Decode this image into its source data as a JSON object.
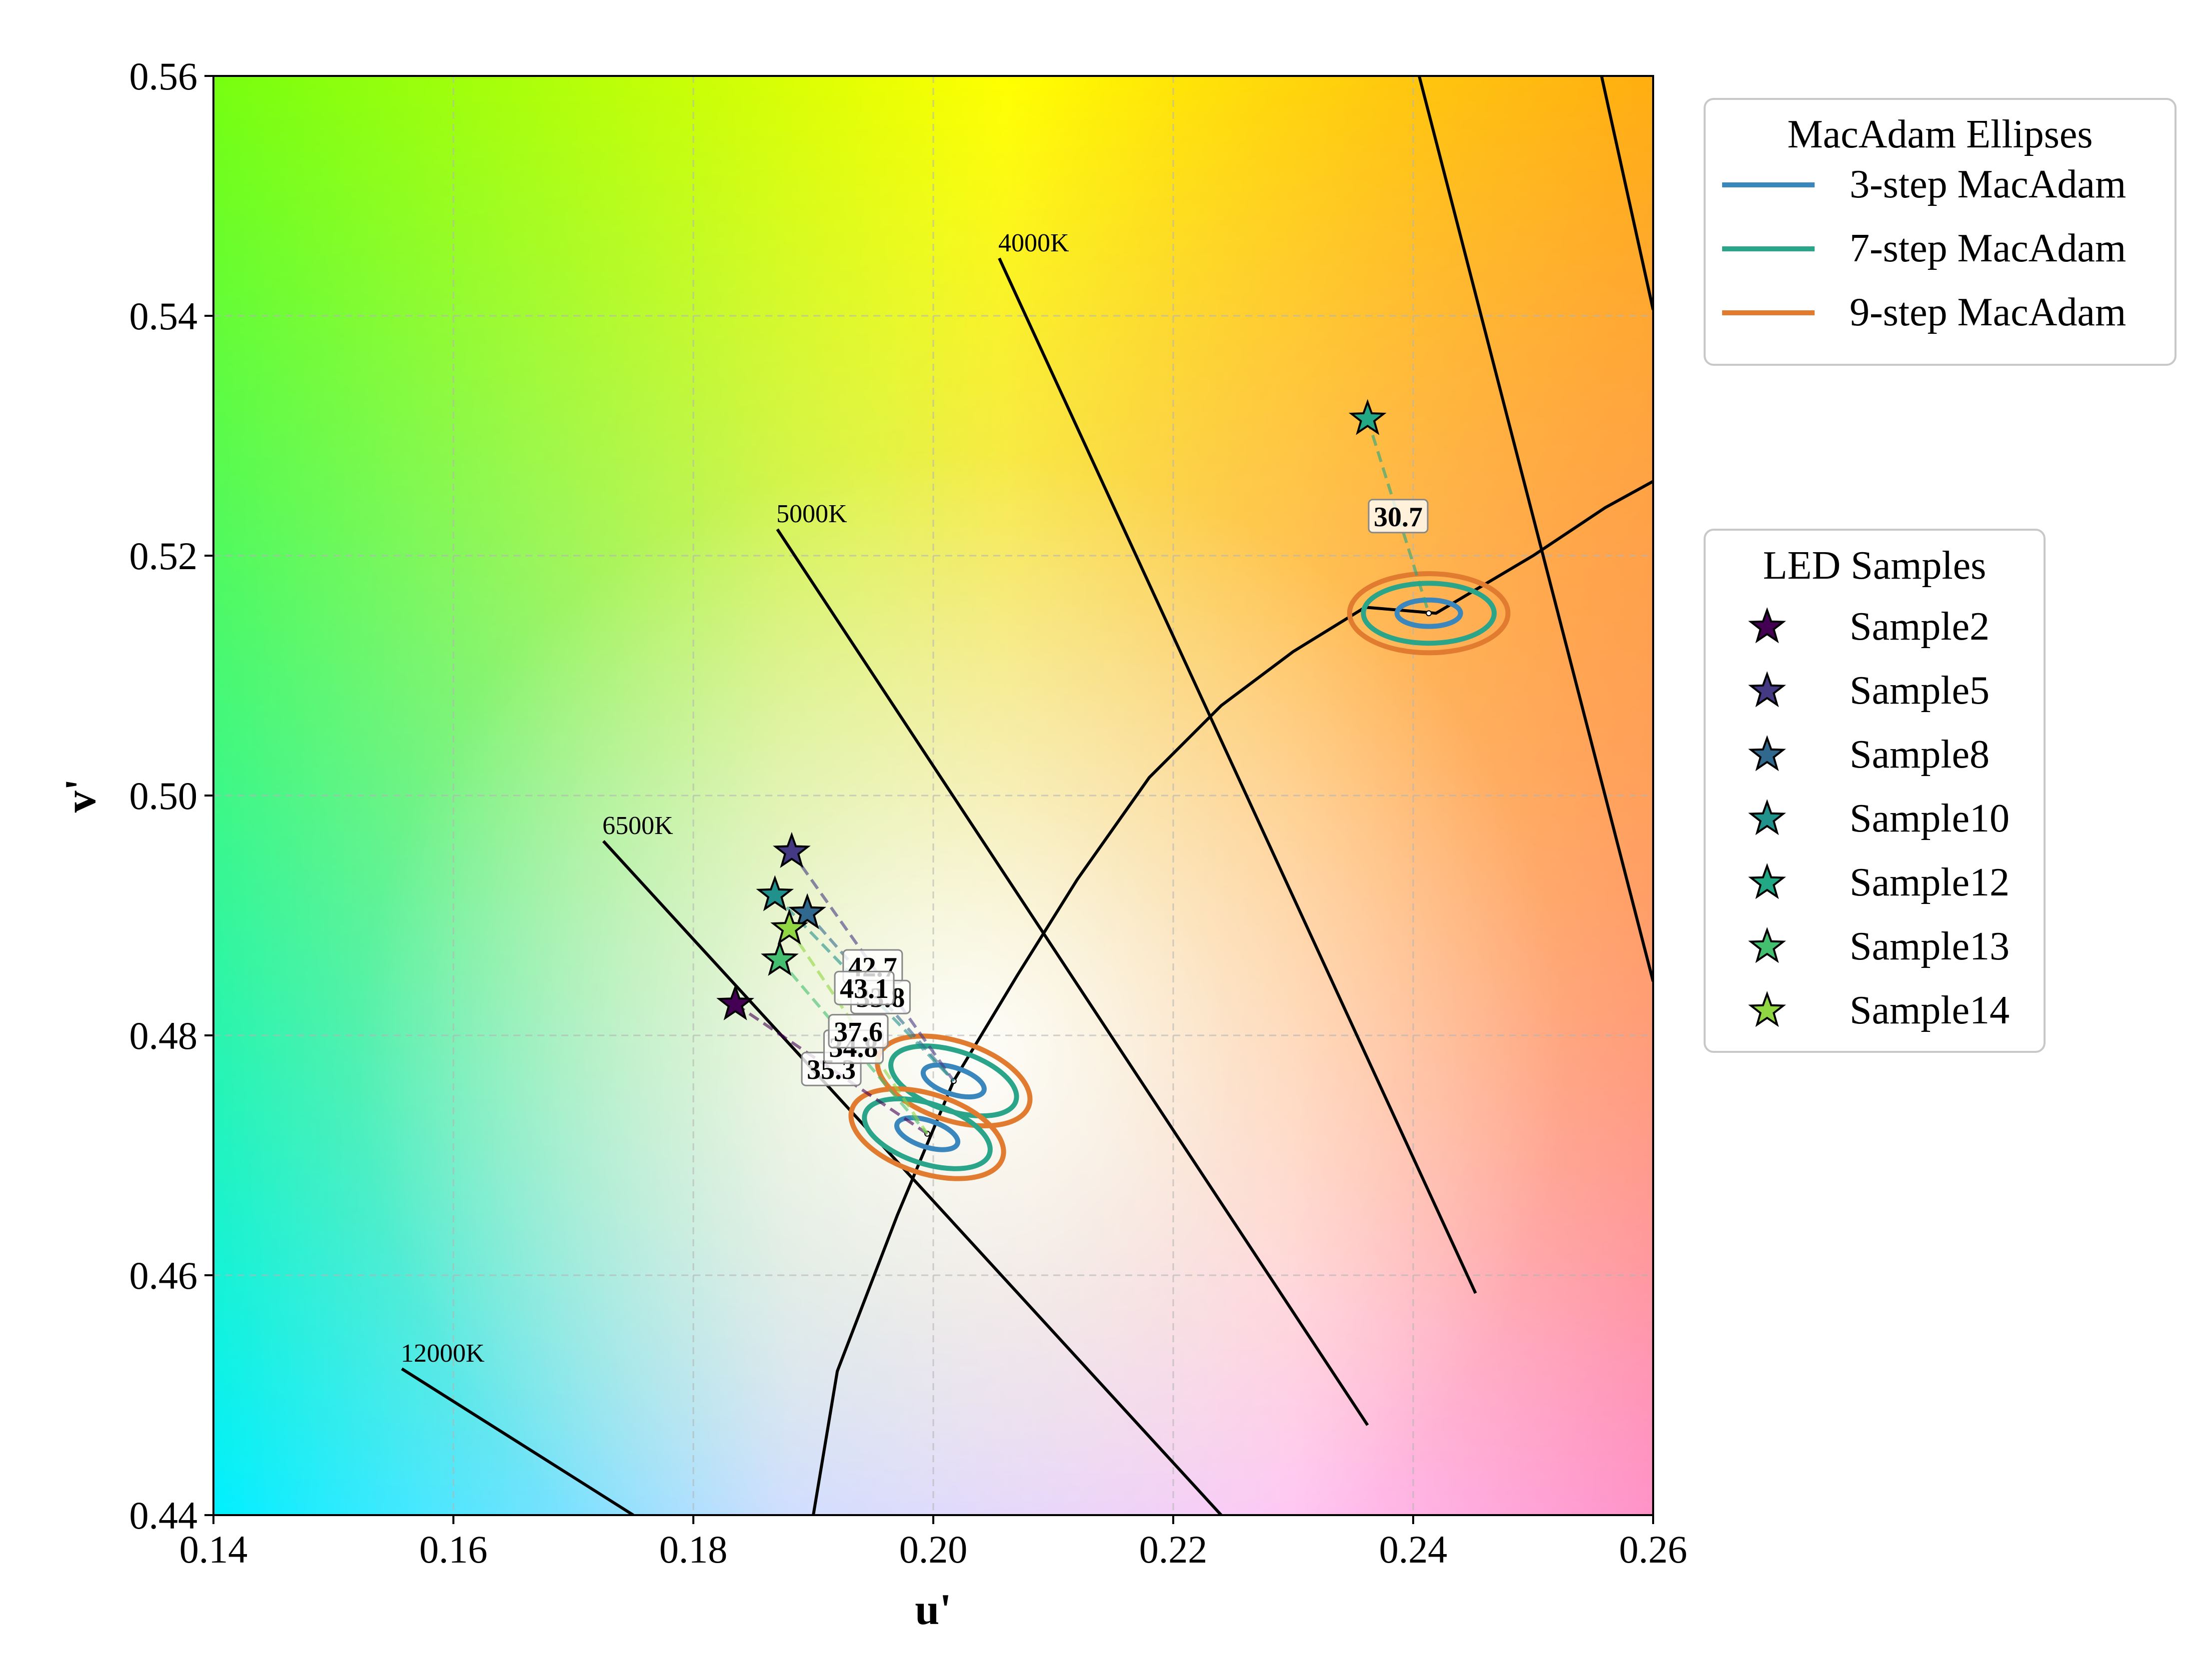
{
  "chart_data": {
    "type": "scatter",
    "xlabel": "u'",
    "ylabel": "v'",
    "xlim": [
      0.14,
      0.26
    ],
    "ylim": [
      0.44,
      0.56
    ],
    "x_ticks": [
      "0.14",
      "0.16",
      "0.18",
      "0.20",
      "0.22",
      "0.24",
      "0.26"
    ],
    "y_ticks": [
      "0.44",
      "0.46",
      "0.48",
      "0.50",
      "0.52",
      "0.54",
      "0.56"
    ],
    "grid": true,
    "background": "CIE 1976 u'v' chromaticity color map",
    "planckian_locus": [
      [
        0.19,
        0.44
      ],
      [
        0.192,
        0.452
      ],
      [
        0.197,
        0.465
      ],
      [
        0.2017,
        0.4762
      ],
      [
        0.207,
        0.485
      ],
      [
        0.212,
        0.493
      ],
      [
        0.218,
        0.5015
      ],
      [
        0.224,
        0.5075
      ],
      [
        0.23,
        0.512
      ],
      [
        0.236,
        0.5157
      ],
      [
        0.2419,
        0.5152
      ],
      [
        0.25,
        0.52
      ],
      [
        0.256,
        0.524
      ],
      [
        0.26,
        0.5262
      ]
    ],
    "isotemperature_lines": [
      {
        "label": "12000K",
        "start": [
          0.1557,
          0.4522
        ],
        "end": [
          0.175,
          0.44
        ]
      },
      {
        "label": "6500K",
        "start": [
          0.1725,
          0.4962
        ],
        "end": [
          0.224,
          0.44
        ]
      },
      {
        "label": "5000K",
        "start": [
          0.187,
          0.5222
        ],
        "end": [
          0.2362,
          0.4475
        ]
      },
      {
        "label": "4000K",
        "start": [
          0.2055,
          0.5448
        ],
        "end": [
          0.2452,
          0.4585
        ]
      },
      {
        "label": "",
        "start": [
          0.2405,
          0.56
        ],
        "end": [
          0.26,
          0.4845
        ]
      },
      {
        "label": "",
        "start": [
          0.2557,
          0.56
        ],
        "end": [
          0.26,
          0.5405
        ]
      }
    ],
    "ellipse_centers": [
      {
        "u": 0.2017,
        "v": 0.4762,
        "angle_deg": 18
      },
      {
        "u": 0.1995,
        "v": 0.4718,
        "angle_deg": 18
      },
      {
        "u": 0.2413,
        "v": 0.5152,
        "angle_deg": 0
      }
    ],
    "ellipse_legend": {
      "title": "MacAdam Ellipses",
      "items": [
        {
          "label": "3-step MacAdam",
          "color": "#3a87bd",
          "axes": [
            0.00265,
            0.0011
          ]
        },
        {
          "label": "7-step MacAdam",
          "color": "#2aa58a",
          "axes": [
            0.00545,
            0.0025
          ]
        },
        {
          "label": "9-step MacAdam",
          "color": "#e07b30",
          "axes": [
            0.0066,
            0.0033
          ]
        }
      ]
    },
    "samples_legend": {
      "title": "LED Samples",
      "items": [
        {
          "label": "Sample2",
          "color": "#440154",
          "u": 0.1835,
          "v": 0.4826,
          "target": 1,
          "deviation": "35.3"
        },
        {
          "label": "Sample5",
          "color": "#443a83",
          "u": 0.1882,
          "v": 0.4953,
          "target": 0,
          "deviation": "42.7"
        },
        {
          "label": "Sample8",
          "color": "#31688e",
          "u": 0.1895,
          "v": 0.4902,
          "target": 0,
          "deviation": "33.8"
        },
        {
          "label": "Sample10",
          "color": "#21918c",
          "u": 0.1868,
          "v": 0.4917,
          "target": 0,
          "deviation": "43.1"
        },
        {
          "label": "Sample12",
          "color": "#22a884",
          "u": 0.2362,
          "v": 0.5314,
          "target": 2,
          "deviation": "30.7"
        },
        {
          "label": "Sample13",
          "color": "#44bf70",
          "u": 0.1872,
          "v": 0.4863,
          "target": 1,
          "deviation": "34.8"
        },
        {
          "label": "Sample14",
          "color": "#90d743",
          "u": 0.188,
          "v": 0.4889,
          "target": 1,
          "deviation": "37.6"
        }
      ]
    }
  }
}
